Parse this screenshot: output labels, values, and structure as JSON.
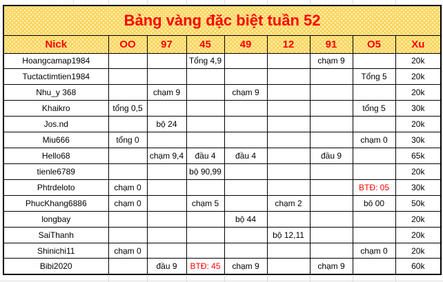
{
  "title": "Bảng vàng đặc biệt tuần 52",
  "colors": {
    "accent_red": "#ff0000",
    "header_bg": "#fbd55f",
    "header_dot": "#fef3c0",
    "border": "#000000",
    "gridline": "#d9d9d9"
  },
  "columns": [
    "Nick",
    "OO",
    "97",
    "45",
    "49",
    "12",
    "91",
    "O5",
    "Xu"
  ],
  "column_keys": [
    "nick",
    "oo",
    "97",
    "45",
    "49",
    "12",
    "91",
    "o5",
    "xu"
  ],
  "rows": [
    {
      "cells": [
        "Hoangcamap1984",
        "",
        "",
        "Tổng 4,9",
        "",
        "",
        "chạm 9",
        "",
        "20k"
      ],
      "red": []
    },
    {
      "cells": [
        "Tuctactimtien1984",
        "",
        "",
        "",
        "",
        "",
        "",
        "Tổng 5",
        "20k"
      ],
      "red": []
    },
    {
      "cells": [
        "Nhu_y 368",
        "",
        "chạm 9",
        "",
        "chạm 9",
        "",
        "",
        "",
        "20k"
      ],
      "red": []
    },
    {
      "cells": [
        "Khaikro",
        "tổng 0,5",
        "",
        "",
        "",
        "",
        "",
        "tổng 5",
        "30k"
      ],
      "red": []
    },
    {
      "cells": [
        "Jos.nd",
        "",
        "bộ 24",
        "",
        "",
        "",
        "",
        "",
        "20k"
      ],
      "red": []
    },
    {
      "cells": [
        "Miu666",
        "tổng 0",
        "",
        "",
        "",
        "",
        "",
        "chạm 0",
        "30k"
      ],
      "red": []
    },
    {
      "cells": [
        "Hello68",
        "",
        "chạm 9,4",
        "đầu 4",
        "đầu 4",
        "",
        "đầu 9",
        "",
        "65k"
      ],
      "red": []
    },
    {
      "cells": [
        "tienle6789",
        "",
        "",
        "bộ 90,99",
        "",
        "",
        "",
        "",
        "20k"
      ],
      "red": []
    },
    {
      "cells": [
        "Phtrdeloto",
        "chạm 0",
        "",
        "",
        "",
        "",
        "",
        "BTĐ: 05",
        "30k"
      ],
      "red": [
        7
      ]
    },
    {
      "cells": [
        "PhucKhang6886",
        "chạm 0",
        "",
        "chạm 5",
        "",
        "chạm 2",
        "",
        "bô 00",
        "50k"
      ],
      "red": []
    },
    {
      "cells": [
        "longbay",
        "",
        "",
        "",
        "bộ 44",
        "",
        "",
        "",
        "20k"
      ],
      "red": []
    },
    {
      "cells": [
        "SaiThanh",
        "",
        "",
        "",
        "",
        "bộ 12,11",
        "",
        "",
        "20k"
      ],
      "red": []
    },
    {
      "cells": [
        "Shinichi11",
        "chạm 0",
        "",
        "",
        "",
        "",
        "",
        "chạm 0",
        "20k"
      ],
      "red": []
    },
    {
      "cells": [
        "Bibi2020",
        "",
        "đầu 9",
        "BTĐ: 45",
        "chạm 9",
        "",
        "chạm 9",
        "",
        "60k"
      ],
      "red": [
        3
      ]
    }
  ]
}
